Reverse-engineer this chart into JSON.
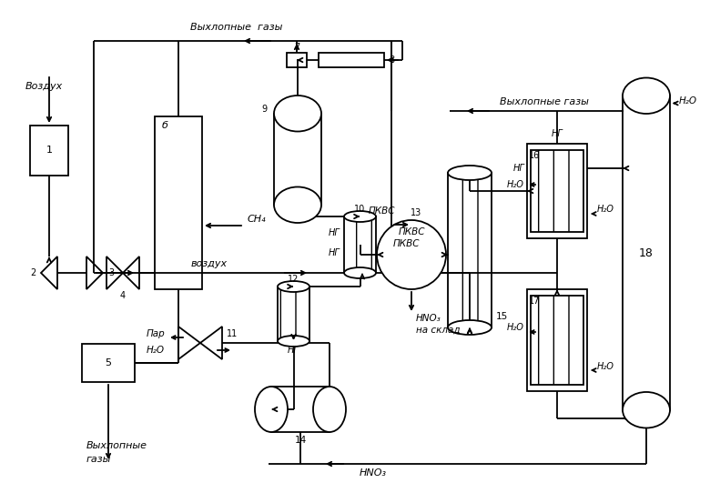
{
  "figsize": [
    7.8,
    5.53
  ],
  "dpi": 100,
  "bg": "#ffffff",
  "lw": 1.3,
  "labels": {
    "vozdukh": "Воздух",
    "vyhlopnye_gazy": "Выхлопные газы",
    "vyhlopnye_gazy2": "Выхлопные газы",
    "hno3_sklad": "HNO₃\nна склад",
    "hno3": "HNO₃",
    "par": "Пар",
    "h2o": "H₂O",
    "ng": "НГ",
    "pkvc": "ПКВС",
    "ch4": "СН₄",
    "vozdukh2": "воздух"
  }
}
